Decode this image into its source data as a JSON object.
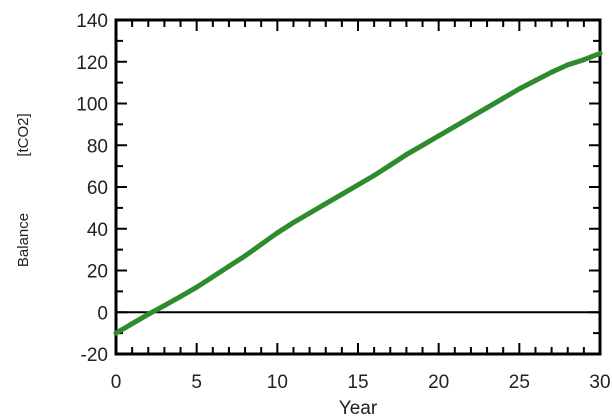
{
  "chart_data": {
    "type": "line",
    "xlabel": "Year",
    "ylabel_parts": [
      "Balance",
      "[tCO2]"
    ],
    "xlim": [
      0,
      30
    ],
    "ylim": [
      -20,
      140
    ],
    "xticks": [
      0,
      5,
      10,
      15,
      20,
      25,
      30
    ],
    "yticks": [
      -20,
      0,
      20,
      40,
      60,
      80,
      100,
      120,
      140
    ],
    "grid": false,
    "zero_line": 0,
    "series": [
      {
        "color": "#2e8b2e",
        "x": [
          0,
          1,
          2,
          3,
          4,
          5,
          6,
          7,
          8,
          9,
          10,
          11,
          12,
          13,
          14,
          15,
          16,
          17,
          18,
          19,
          20,
          21,
          22,
          23,
          24,
          25,
          26,
          27,
          28,
          29,
          30
        ],
        "y": [
          -10,
          -5.5,
          -1,
          3.2,
          7.5,
          12,
          17,
          22,
          27,
          32.5,
          38,
          43,
          47.5,
          52,
          56.5,
          61,
          65.5,
          70.5,
          75.5,
          80,
          84.5,
          89,
          93.5,
          98,
          102.5,
          107,
          111,
          115,
          118.5,
          121,
          124
        ]
      }
    ]
  }
}
